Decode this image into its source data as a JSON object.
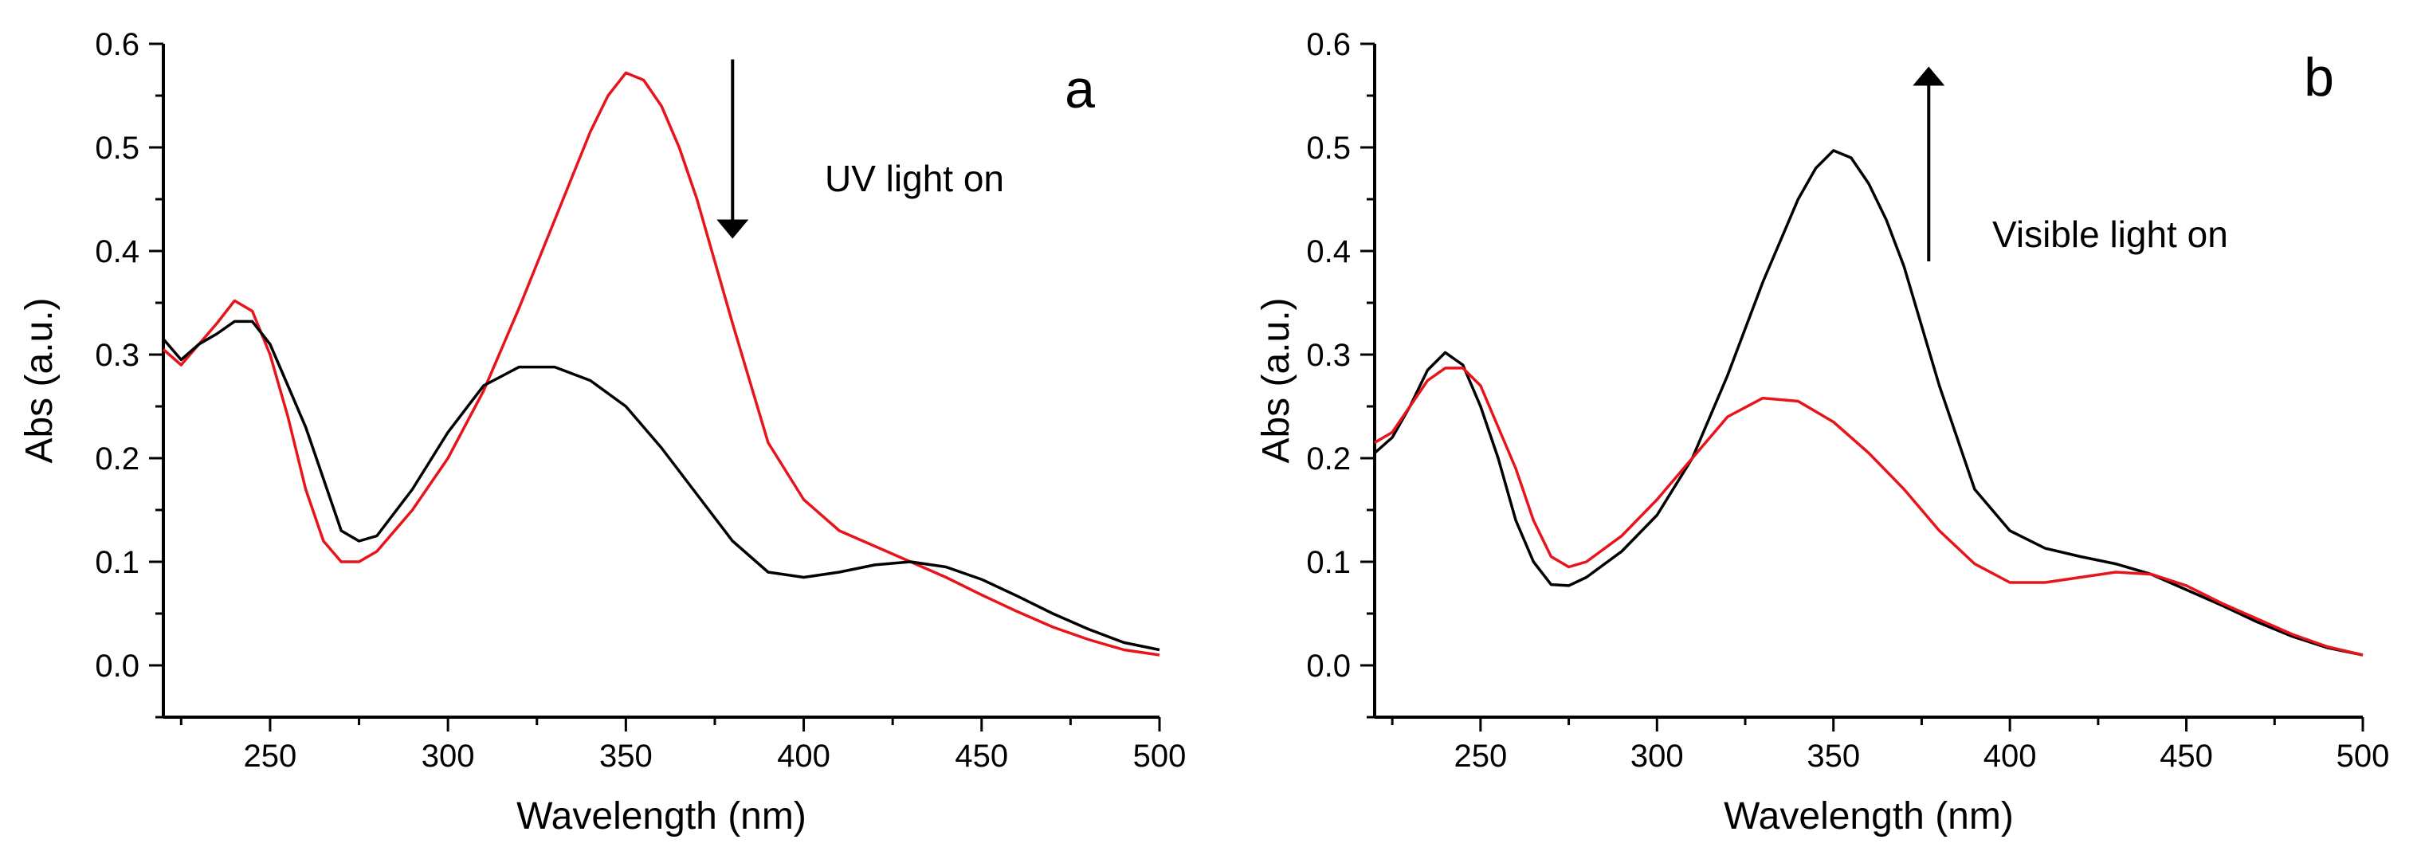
{
  "chart_data": [
    {
      "type": "line",
      "panel_label": "a",
      "xlabel": "Wavelength (nm)",
      "ylabel": "Abs (a.u.)",
      "xlim": [
        220,
        500
      ],
      "ylim": [
        -0.05,
        0.6
      ],
      "x_ticks": [
        250,
        300,
        350,
        400,
        450,
        500
      ],
      "x_tick_labels": [
        "250",
        "300",
        "350",
        "400",
        "450",
        "500"
      ],
      "y_ticks": [
        0.0,
        0.1,
        0.2,
        0.3,
        0.4,
        0.5,
        0.6
      ],
      "y_tick_labels": [
        "0.0",
        "0.1",
        "0.2",
        "0.3",
        "0.4",
        "0.5",
        "0.6"
      ],
      "annotation": {
        "text": "UV light on",
        "arrow": "down",
        "arrow_x": 380,
        "arrow_y_from": 0.585,
        "arrow_y_to": 0.415
      },
      "series": [
        {
          "name": "red",
          "color": "#e8141c",
          "x": [
            220,
            225,
            230,
            235,
            240,
            245,
            250,
            255,
            260,
            265,
            270,
            275,
            280,
            290,
            300,
            310,
            320,
            330,
            340,
            345,
            350,
            355,
            360,
            365,
            370,
            380,
            390,
            400,
            410,
            420,
            430,
            440,
            450,
            460,
            470,
            480,
            490,
            500
          ],
          "y": [
            0.305,
            0.29,
            0.31,
            0.33,
            0.352,
            0.342,
            0.3,
            0.24,
            0.17,
            0.12,
            0.1,
            0.1,
            0.11,
            0.15,
            0.2,
            0.265,
            0.345,
            0.43,
            0.515,
            0.55,
            0.572,
            0.565,
            0.54,
            0.5,
            0.45,
            0.33,
            0.215,
            0.16,
            0.13,
            0.115,
            0.1,
            0.085,
            0.068,
            0.052,
            0.037,
            0.025,
            0.015,
            0.01
          ]
        },
        {
          "name": "black",
          "color": "#000000",
          "x": [
            220,
            225,
            230,
            235,
            240,
            245,
            250,
            255,
            260,
            265,
            270,
            275,
            280,
            290,
            300,
            310,
            320,
            330,
            340,
            350,
            360,
            370,
            380,
            390,
            400,
            410,
            420,
            430,
            440,
            450,
            460,
            470,
            480,
            490,
            500
          ],
          "y": [
            0.315,
            0.295,
            0.31,
            0.32,
            0.332,
            0.332,
            0.31,
            0.27,
            0.23,
            0.18,
            0.13,
            0.12,
            0.125,
            0.17,
            0.225,
            0.27,
            0.288,
            0.288,
            0.275,
            0.25,
            0.21,
            0.165,
            0.12,
            0.09,
            0.085,
            0.09,
            0.097,
            0.1,
            0.095,
            0.083,
            0.067,
            0.05,
            0.035,
            0.022,
            0.015
          ]
        }
      ]
    },
    {
      "type": "line",
      "panel_label": "b",
      "xlabel": "Wavelength (nm)",
      "ylabel": "Abs (a.u.)",
      "xlim": [
        220,
        500
      ],
      "ylim": [
        -0.05,
        0.6
      ],
      "x_ticks": [
        250,
        300,
        350,
        400,
        450,
        500
      ],
      "x_tick_labels": [
        "250",
        "300",
        "350",
        "400",
        "450",
        "500"
      ],
      "y_ticks": [
        0.0,
        0.1,
        0.2,
        0.3,
        0.4,
        0.5,
        0.6
      ],
      "y_tick_labels": [
        "0.0",
        "0.1",
        "0.2",
        "0.3",
        "0.4",
        "0.5",
        "0.6"
      ],
      "annotation": {
        "text": "Visible light on",
        "arrow": "up",
        "arrow_x": 377,
        "arrow_y_from": 0.39,
        "arrow_y_to": 0.575
      },
      "series": [
        {
          "name": "black",
          "color": "#000000",
          "x": [
            220,
            225,
            230,
            235,
            240,
            245,
            250,
            255,
            260,
            265,
            270,
            275,
            280,
            290,
            300,
            310,
            320,
            330,
            340,
            345,
            350,
            355,
            360,
            365,
            370,
            380,
            390,
            400,
            410,
            420,
            430,
            440,
            450,
            460,
            470,
            480,
            490,
            500
          ],
          "y": [
            0.205,
            0.22,
            0.25,
            0.285,
            0.302,
            0.29,
            0.25,
            0.2,
            0.14,
            0.1,
            0.078,
            0.077,
            0.085,
            0.11,
            0.145,
            0.2,
            0.28,
            0.37,
            0.45,
            0.48,
            0.497,
            0.49,
            0.465,
            0.43,
            0.385,
            0.27,
            0.17,
            0.13,
            0.113,
            0.105,
            0.098,
            0.088,
            0.073,
            0.058,
            0.042,
            0.028,
            0.017,
            0.01
          ]
        },
        {
          "name": "red",
          "color": "#e8141c",
          "x": [
            220,
            225,
            230,
            235,
            240,
            245,
            250,
            255,
            260,
            265,
            270,
            275,
            280,
            290,
            300,
            310,
            320,
            330,
            340,
            350,
            360,
            370,
            380,
            390,
            400,
            410,
            420,
            430,
            440,
            450,
            460,
            470,
            480,
            490,
            500
          ],
          "y": [
            0.215,
            0.225,
            0.25,
            0.275,
            0.287,
            0.287,
            0.27,
            0.23,
            0.19,
            0.14,
            0.105,
            0.095,
            0.1,
            0.125,
            0.16,
            0.2,
            0.24,
            0.258,
            0.255,
            0.235,
            0.205,
            0.17,
            0.13,
            0.098,
            0.08,
            0.08,
            0.085,
            0.09,
            0.088,
            0.077,
            0.06,
            0.045,
            0.03,
            0.018,
            0.01
          ]
        }
      ]
    }
  ]
}
